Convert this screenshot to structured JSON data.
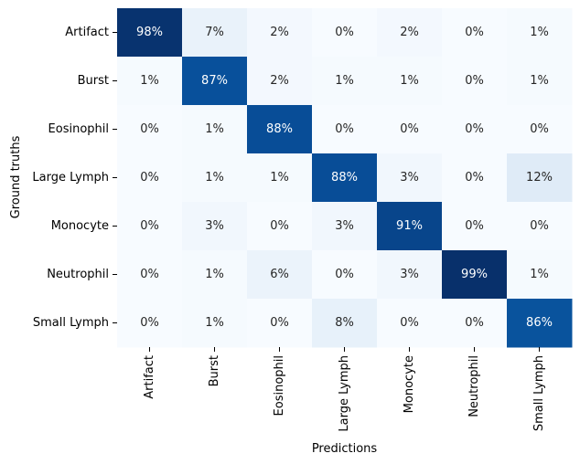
{
  "chart_data": {
    "type": "heatmap",
    "xlabel": "Predictions",
    "ylabel": "Ground truths",
    "x_categories": [
      "Artifact",
      "Burst",
      "Eosinophil",
      "Large Lymph",
      "Monocyte",
      "Neutrophil",
      "Small Lymph"
    ],
    "y_categories": [
      "Artifact",
      "Burst",
      "Eosinophil",
      "Large Lymph",
      "Monocyte",
      "Neutrophil",
      "Small Lymph"
    ],
    "values": [
      [
        98,
        7,
        2,
        0,
        2,
        0,
        1
      ],
      [
        1,
        87,
        2,
        1,
        1,
        0,
        1
      ],
      [
        0,
        1,
        88,
        0,
        0,
        0,
        0
      ],
      [
        0,
        1,
        1,
        88,
        3,
        0,
        12
      ],
      [
        0,
        3,
        0,
        3,
        91,
        0,
        0
      ],
      [
        0,
        1,
        6,
        0,
        3,
        99,
        1
      ],
      [
        0,
        1,
        0,
        8,
        0,
        0,
        86
      ]
    ],
    "value_suffix": "%",
    "colormap": "Blues",
    "color_range": [
      0,
      99
    ],
    "colorbar": false,
    "grid": false
  }
}
